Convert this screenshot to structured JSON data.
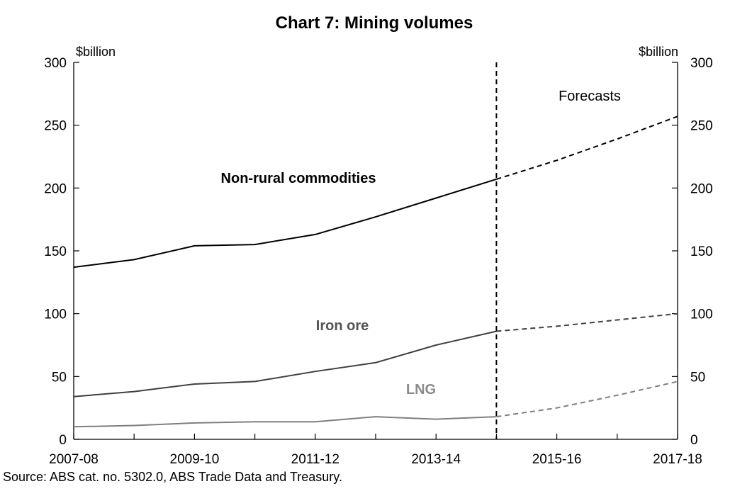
{
  "chart_data": {
    "type": "line",
    "title": "Chart 7: Mining volumes",
    "y_unit_left": "$billion",
    "y_unit_right": "$billion",
    "ylim": [
      0,
      300
    ],
    "yticks": [
      "0",
      "50",
      "100",
      "150",
      "200",
      "250",
      "300"
    ],
    "x_tick_labels": [
      "2007-08",
      "2009-10",
      "2011-12",
      "2013-14",
      "2015-16",
      "2017-18"
    ],
    "x": [
      "2007-08",
      "2008-09",
      "2009-10",
      "2010-11",
      "2011-12",
      "2012-13",
      "2013-14",
      "2014-15",
      "2015-16",
      "2016-17",
      "2017-18"
    ],
    "forecast_start": "2014-15",
    "forecast_label": "Forecasts",
    "series": [
      {
        "name": "Non-rural commodities",
        "color": "#000000",
        "values": [
          137,
          143,
          154,
          155,
          163,
          177,
          192,
          207,
          222,
          239,
          257
        ]
      },
      {
        "name": "Iron ore",
        "color": "#404040",
        "values": [
          34,
          38,
          44,
          46,
          54,
          61,
          75,
          86,
          90,
          95,
          100
        ]
      },
      {
        "name": "LNG",
        "color": "#7f7f7f",
        "values": [
          10,
          11,
          13,
          14,
          14,
          18,
          16,
          18,
          25,
          35,
          46
        ]
      }
    ]
  },
  "source": "Source: ABS cat. no. 5302.0, ABS Trade Data and Treasury."
}
